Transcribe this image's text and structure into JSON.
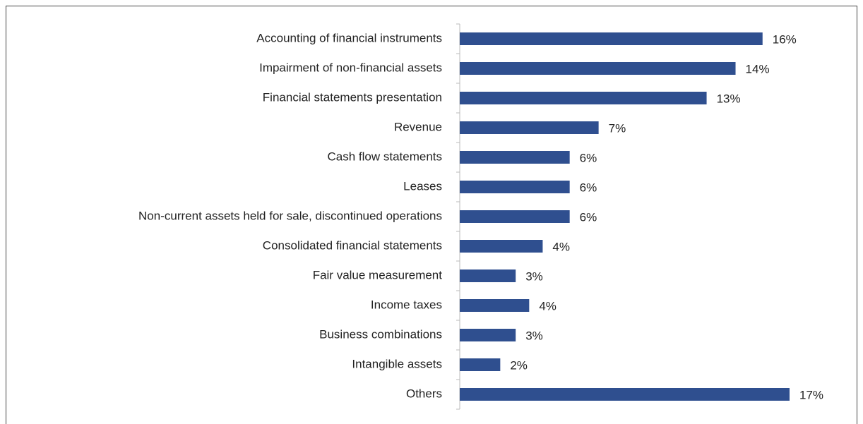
{
  "chart_data": {
    "type": "bar",
    "orientation": "horizontal",
    "categories": [
      "Accounting of financial instruments",
      "Impairment of non-financial assets",
      "Financial statements presentation",
      "Revenue",
      "Cash flow statements",
      "Leases",
      "Non-current assets held for sale, discontinued operations",
      "Consolidated financial statements",
      "Fair value measurement",
      "Income taxes",
      "Business combinations",
      "Intangible assets",
      "Others"
    ],
    "values": [
      15.7,
      14.3,
      12.8,
      7.2,
      5.7,
      5.7,
      5.7,
      4.3,
      2.9,
      3.6,
      2.9,
      2.1,
      17.1
    ],
    "value_labels": [
      "16%",
      "14%",
      "13%",
      "7%",
      "6%",
      "6%",
      "6%",
      "4%",
      "3%",
      "4%",
      "3%",
      "2%",
      "17%"
    ],
    "color": "#2f4f8f"
  }
}
